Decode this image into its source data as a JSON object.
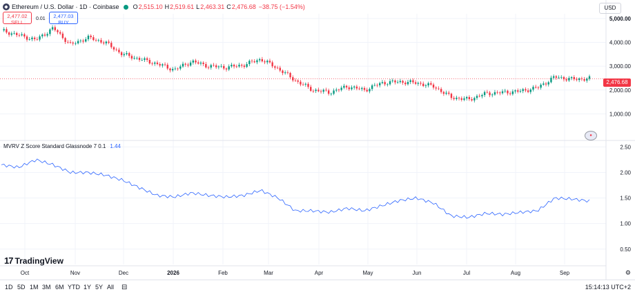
{
  "header": {
    "symbol_title": "Ethereum / U.S. Dollar · 1D · Coinbase",
    "o_key": "O",
    "o": "2,515.10",
    "h_key": "H",
    "h": "2,519.61",
    "l_key": "L",
    "l": "2,463.31",
    "c_key": "C",
    "c": "2,476.68",
    "change": "−38.75 (−1.54%)"
  },
  "trade": {
    "sell_price": "2,477.02",
    "sell_label": "SELL",
    "spread": "0.01",
    "buy_price": "2,477.03",
    "buy_label": "BUY"
  },
  "currency": "USD",
  "last_price_tag": "2,476.68",
  "indicator": {
    "legend": "MVRV Z Score Standard Glassnode 7 0.1",
    "value": "1.44"
  },
  "logo": "TradingView",
  "bottom_bar": {
    "timeframes": [
      "1D",
      "5D",
      "1M",
      "3M",
      "6M",
      "YTD",
      "1Y",
      "5Y",
      "All"
    ],
    "clock": "15:14:13 UTC+2"
  },
  "colors": {
    "up": "#089981",
    "down": "#f23645",
    "indicator": "#2962ff",
    "grid": "#f0f3fa"
  },
  "chart_data": [
    {
      "type": "candlestick",
      "title": "Ethereum / U.S. Dollar · 1D · Coinbase",
      "y_axis_labels": [
        "5,000.00",
        "4,000.00",
        "3,000.00",
        "2,000.00",
        "1,000.00"
      ],
      "y_ticks": [
        5000,
        4000,
        3000,
        2000,
        1000
      ],
      "ylim": [
        0,
        5200
      ],
      "x_labels": [
        "Oct",
        "Nov",
        "Dec",
        "2026",
        "Feb",
        "Mar",
        "Apr",
        "May",
        "Jun",
        "Jul",
        "Aug",
        "Sep"
      ],
      "last_price": 2476.68,
      "series": [
        {
          "name": "ETHUSD",
          "close_approx": [
            [
              0,
              4500
            ],
            [
              1,
              4300
            ],
            [
              2,
              4100
            ],
            [
              3,
              4600
            ],
            [
              4,
              3900
            ],
            [
              5,
              4200
            ],
            [
              6,
              4000
            ],
            [
              7,
              3500
            ],
            [
              8,
              3300
            ],
            [
              9,
              3100
            ],
            [
              10,
              2850
            ],
            [
              11,
              3200
            ],
            [
              12,
              3000
            ],
            [
              13,
              2950
            ],
            [
              14,
              3050
            ],
            [
              15,
              3300
            ],
            [
              16,
              2900
            ],
            [
              17,
              2400
            ],
            [
              18,
              2000
            ],
            [
              19,
              1900
            ],
            [
              20,
              2150
            ],
            [
              21,
              2000
            ],
            [
              22,
              2300
            ],
            [
              23,
              2350
            ],
            [
              24,
              2300
            ],
            [
              25,
              2150
            ],
            [
              26,
              1700
            ],
            [
              27,
              1600
            ],
            [
              28,
              1850
            ],
            [
              29,
              1900
            ],
            [
              30,
              1950
            ],
            [
              31,
              2100
            ],
            [
              32,
              2550
            ],
            [
              33,
              2450
            ],
            [
              34,
              2480
            ]
          ]
        }
      ]
    },
    {
      "type": "line",
      "title": "MVRV Z Score Standard Glassnode 7 0.1",
      "y_axis_labels": [
        "2.50",
        "2.00",
        "1.50",
        "1.00",
        "0.50"
      ],
      "y_ticks": [
        2.5,
        2.0,
        1.5,
        1.0,
        0.5
      ],
      "ylim": [
        0.2,
        2.6
      ],
      "last_value": 1.44,
      "series": [
        {
          "name": "MVRV Z Score",
          "values_approx": [
            [
              0,
              2.15
            ],
            [
              1,
              2.1
            ],
            [
              2,
              2.25
            ],
            [
              3,
              2.15
            ],
            [
              4,
              2.0
            ],
            [
              5,
              2.0
            ],
            [
              6,
              1.95
            ],
            [
              7,
              1.85
            ],
            [
              8,
              1.7
            ],
            [
              9,
              1.55
            ],
            [
              10,
              1.52
            ],
            [
              11,
              1.6
            ],
            [
              12,
              1.55
            ],
            [
              13,
              1.52
            ],
            [
              14,
              1.55
            ],
            [
              15,
              1.65
            ],
            [
              16,
              1.5
            ],
            [
              17,
              1.25
            ],
            [
              18,
              1.25
            ],
            [
              19,
              1.22
            ],
            [
              20,
              1.3
            ],
            [
              21,
              1.25
            ],
            [
              22,
              1.35
            ],
            [
              23,
              1.45
            ],
            [
              24,
              1.5
            ],
            [
              25,
              1.4
            ],
            [
              26,
              1.15
            ],
            [
              27,
              1.12
            ],
            [
              28,
              1.2
            ],
            [
              29,
              1.18
            ],
            [
              30,
              1.22
            ],
            [
              31,
              1.25
            ],
            [
              32,
              1.5
            ],
            [
              33,
              1.48
            ],
            [
              34,
              1.44
            ]
          ]
        }
      ]
    }
  ]
}
